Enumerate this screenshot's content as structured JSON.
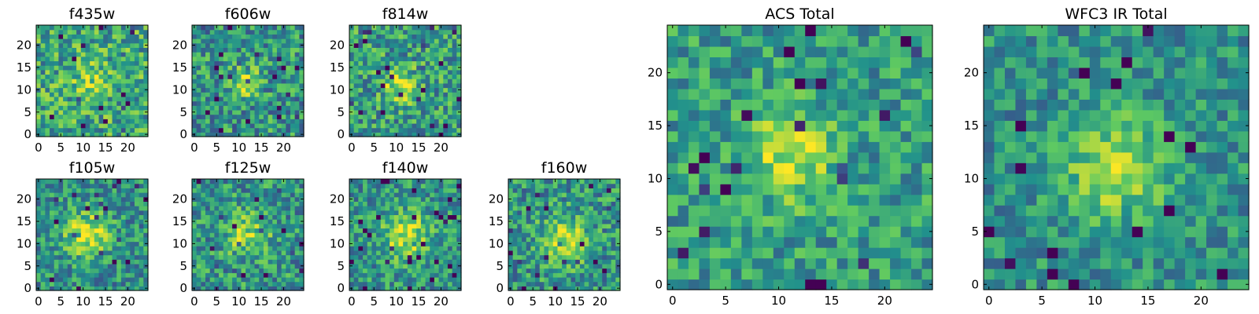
{
  "figure": {
    "colormap": "viridis",
    "colors": [
      "#440154",
      "#3b528b",
      "#21918c",
      "#5ec962",
      "#fde725"
    ],
    "background": "#ffffff"
  },
  "chart_data": [
    {
      "type": "heatmap",
      "title": "f435w",
      "grid_size": 25,
      "seed": 11,
      "blob": {
        "center": [
          12,
          12
        ],
        "amplitude": 0.2,
        "sigma": 3.0
      },
      "noise": 0.28,
      "base": 0.6,
      "xticks": [
        "0",
        "5",
        "10",
        "15",
        "20"
      ],
      "yticks": [
        "0",
        "5",
        "10",
        "15",
        "20"
      ],
      "xlim": [
        -0.5,
        24.5
      ],
      "ylim": [
        -0.5,
        24.5
      ]
    },
    {
      "type": "heatmap",
      "title": "f606w",
      "grid_size": 25,
      "seed": 23,
      "blob": {
        "center": [
          11,
          12
        ],
        "amplitude": 0.35,
        "sigma": 2.5
      },
      "noise": 0.28,
      "base": 0.52,
      "xticks": [
        "0",
        "5",
        "10",
        "15",
        "20"
      ],
      "yticks": [
        "0",
        "5",
        "10",
        "15",
        "20"
      ],
      "xlim": [
        -0.5,
        24.5
      ],
      "ylim": [
        -0.5,
        24.5
      ]
    },
    {
      "type": "heatmap",
      "title": "f814w",
      "grid_size": 25,
      "seed": 37,
      "blob": {
        "center": [
          11,
          11
        ],
        "amplitude": 0.4,
        "sigma": 2.5
      },
      "noise": 0.28,
      "base": 0.55,
      "xticks": [
        "0",
        "5",
        "10",
        "15",
        "20"
      ],
      "yticks": [
        "0",
        "5",
        "10",
        "15",
        "20"
      ],
      "xlim": [
        -0.5,
        24.5
      ],
      "ylim": [
        -0.5,
        24.5
      ]
    },
    {
      "type": "heatmap",
      "title": "f105w",
      "grid_size": 25,
      "seed": 41,
      "blob": {
        "center": [
          11,
          12
        ],
        "amplitude": 0.45,
        "sigma": 3.5
      },
      "noise": 0.24,
      "base": 0.5,
      "xticks": [
        "0",
        "5",
        "10",
        "15",
        "20"
      ],
      "yticks": [
        "0",
        "5",
        "10",
        "15",
        "20"
      ],
      "xlim": [
        -0.5,
        24.5
      ],
      "ylim": [
        -0.5,
        24.5
      ]
    },
    {
      "type": "heatmap",
      "title": "f125w",
      "grid_size": 25,
      "seed": 53,
      "blob": {
        "center": [
          12,
          12
        ],
        "amplitude": 0.3,
        "sigma": 3.5
      },
      "noise": 0.26,
      "base": 0.52,
      "xticks": [
        "0",
        "5",
        "10",
        "15",
        "20"
      ],
      "yticks": [
        "0",
        "5",
        "10",
        "15",
        "20"
      ],
      "xlim": [
        -0.5,
        24.5
      ],
      "ylim": [
        -0.5,
        24.5
      ]
    },
    {
      "type": "heatmap",
      "title": "f140w",
      "grid_size": 25,
      "seed": 67,
      "blob": {
        "center": [
          12,
          12
        ],
        "amplitude": 0.4,
        "sigma": 3.5
      },
      "noise": 0.24,
      "base": 0.52,
      "xticks": [
        "0",
        "5",
        "10",
        "15",
        "20"
      ],
      "yticks": [
        "0",
        "5",
        "10",
        "15",
        "20"
      ],
      "xlim": [
        -0.5,
        24.5
      ],
      "ylim": [
        -0.5,
        24.5
      ]
    },
    {
      "type": "heatmap",
      "title": "f160w",
      "grid_size": 25,
      "seed": 79,
      "blob": {
        "center": [
          12,
          11
        ],
        "amplitude": 0.4,
        "sigma": 3.5
      },
      "noise": 0.26,
      "base": 0.52,
      "xticks": [
        "0",
        "5",
        "10",
        "15",
        "20"
      ],
      "yticks": [
        "0",
        "5",
        "10",
        "15",
        "20"
      ],
      "xlim": [
        -0.5,
        24.5
      ],
      "ylim": [
        -0.5,
        24.5
      ]
    },
    {
      "type": "heatmap",
      "title": "ACS Total",
      "grid_size": 25,
      "seed": 97,
      "blob": {
        "center": [
          11,
          12
        ],
        "amplitude": 0.38,
        "sigma": 2.8
      },
      "noise": 0.22,
      "base": 0.55,
      "xticks": [
        "0",
        "5",
        "10",
        "15",
        "20"
      ],
      "yticks": [
        "0",
        "5",
        "10",
        "15",
        "20"
      ],
      "xlim": [
        -0.5,
        24.5
      ],
      "ylim": [
        -0.5,
        24.5
      ]
    },
    {
      "type": "heatmap",
      "title": "WFC3 IR Total",
      "grid_size": 25,
      "seed": 113,
      "blob": {
        "center": [
          12,
          11
        ],
        "amplitude": 0.42,
        "sigma": 3.2
      },
      "noise": 0.2,
      "base": 0.5,
      "xticks": [
        "0",
        "5",
        "10",
        "15",
        "20"
      ],
      "yticks": [
        "0",
        "5",
        "10",
        "15",
        "20"
      ],
      "xlim": [
        -0.5,
        24.5
      ],
      "ylim": [
        -0.5,
        24.5
      ]
    }
  ]
}
